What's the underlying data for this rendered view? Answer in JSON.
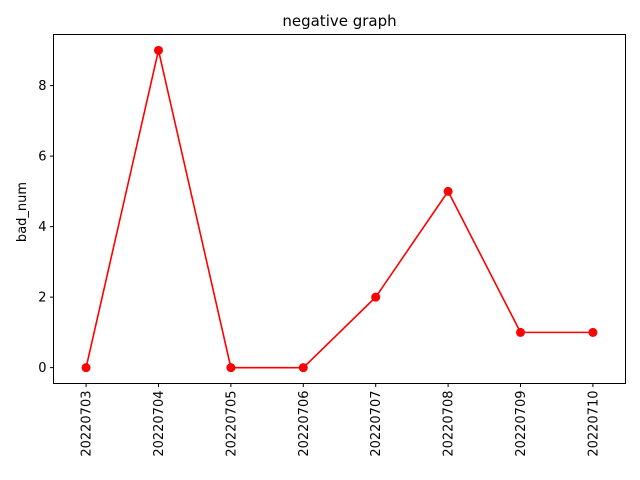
{
  "chart_data": {
    "type": "line",
    "title": "negative graph",
    "xlabel": "",
    "ylabel": "bad_num",
    "categories": [
      "20220703",
      "20220704",
      "20220705",
      "20220706",
      "20220707",
      "20220708",
      "20220709",
      "20220710"
    ],
    "series": [
      {
        "values": [
          0,
          9,
          0,
          0,
          2,
          5,
          1,
          1
        ],
        "color": "#ff0000"
      }
    ],
    "ylim": [
      -0.45,
      9.45
    ],
    "yticks": [
      0,
      2,
      4,
      6,
      8
    ],
    "grid": false,
    "marker": "circle"
  }
}
